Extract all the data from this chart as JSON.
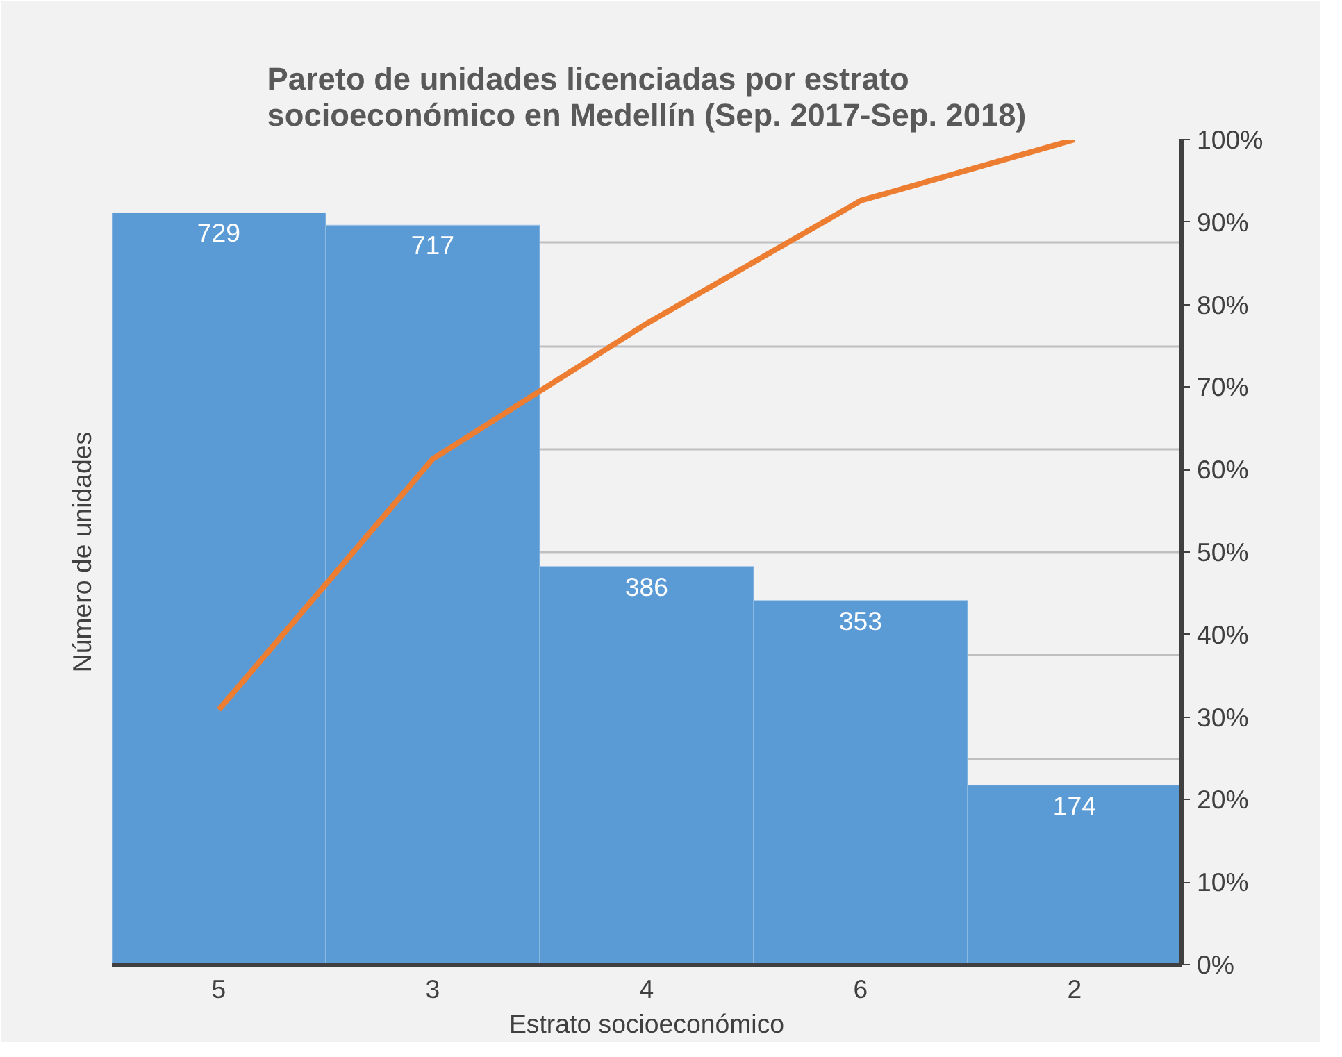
{
  "chart_data": {
    "type": "bar",
    "title": "Pareto de unidades licenciadas por estrato socioeconómico en Medellín (Sep. 2017-Sep. 2018)",
    "xlabel": "Estrato socioeconómico",
    "ylabel": "Número de unidades",
    "categories": [
      "5",
      "3",
      "4",
      "6",
      "2"
    ],
    "series": [
      {
        "color": "#5b9bd5",
        "values": [
          729,
          717,
          386,
          353,
          174
        ],
        "value_labels": [
          "729",
          "717",
          "386",
          "353",
          "174"
        ]
      },
      {
        "type": "line",
        "color": "#ed7d31",
        "axis": "y2",
        "values": [
          30.9,
          61.3,
          77.7,
          92.6,
          100
        ]
      }
    ],
    "ylim": [
      0,
      800
    ],
    "y2lim": [
      0,
      100
    ],
    "y2ticks": [
      {
        "value": 0,
        "label": "0%"
      },
      {
        "value": 10,
        "label": "10%"
      },
      {
        "value": 20,
        "label": "20%"
      },
      {
        "value": 30,
        "label": "30%"
      },
      {
        "value": 40,
        "label": "40%"
      },
      {
        "value": 50,
        "label": "50%"
      },
      {
        "value": 60,
        "label": "60%"
      },
      {
        "value": 70,
        "label": "70%"
      },
      {
        "value": 80,
        "label": "80%"
      },
      {
        "value": 90,
        "label": "90%"
      },
      {
        "value": 100,
        "label": "100%"
      }
    ],
    "grid": "y",
    "tick_labels": [
      "x",
      "y2"
    ]
  }
}
